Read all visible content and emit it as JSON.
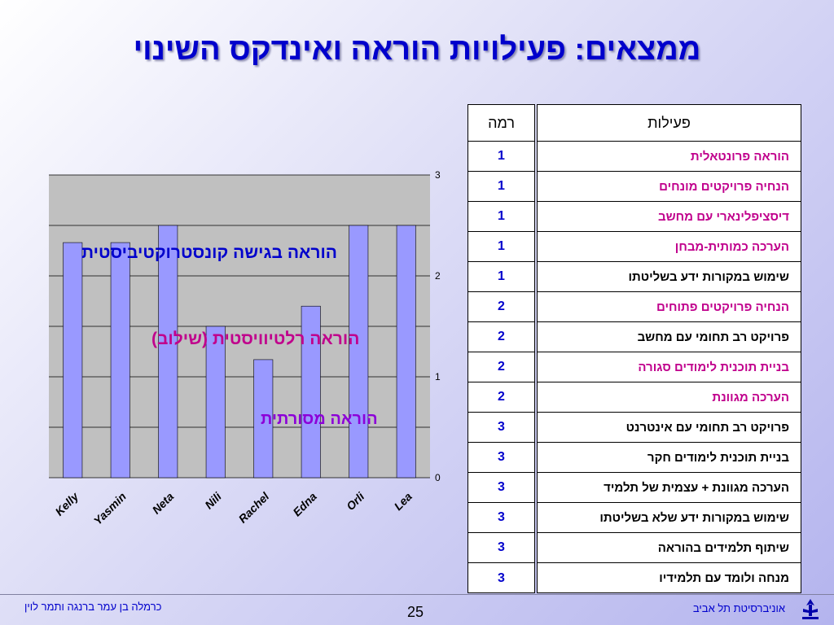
{
  "title": "ממצאים: פעילויות הוראה ואינדקס השינוי",
  "chart_data": {
    "type": "bar",
    "categories": [
      "Kelly",
      "Yasmin",
      "Neta",
      "Nili",
      "Rachel",
      "Edna",
      "Orli",
      "Lea"
    ],
    "values": [
      2.33,
      2.33,
      2.5,
      1.5,
      1.17,
      1.7,
      2.5,
      2.5
    ],
    "ylim": [
      0,
      3
    ],
    "yticks": [
      "0",
      "1",
      "2",
      "3"
    ],
    "grid": true,
    "colors": {
      "bar": "#9999ff",
      "plot_bg": "#c0c0c0",
      "grid": "#000000"
    },
    "annotations": [
      "הוראה בגישה קונסטרוקטיביסטית",
      "הוראה רלטיוויסטית (שילוב)",
      "הוראה מסורתית"
    ]
  },
  "levels_table": {
    "header": "רמה",
    "values": [
      "1",
      "1",
      "1",
      "1",
      "1",
      "2",
      "2",
      "2",
      "2",
      "3",
      "3",
      "3",
      "3",
      "3",
      "3"
    ]
  },
  "activities_table": {
    "header": "פעילות",
    "rows": [
      "הוראה פרונטאלית",
      "הנחיה פרויקטים מונחים",
      "דיסציפלינארי עם מחשב",
      "הערכה כמותית-מבחן",
      "שימוש במקורות ידע בשליטתו",
      "הנחיה פרויקטים פתוחים",
      "פרויקט רב תחומי עם מחשב",
      "בניית תוכנית לימודים סגורה",
      "הערכה מגוונת",
      "פרויקט רב תחומי עם אינטרנט",
      "בניית תוכנית לימודים חקר",
      "הערכה מגוונת + עצמית של תלמיד",
      "שימוש במקורות ידע שלא בשליטתו",
      "שיתוף תלמידים בהוראה",
      "מנחה ולומד עם תלמידיו"
    ]
  },
  "footer": {
    "authors": "כרמלה בן עמר ברנגה ותמר לוין",
    "page": "25",
    "university": "אוניברסיטת תל אביב",
    "logo_icon": "tel-aviv-university-logo-icon"
  }
}
